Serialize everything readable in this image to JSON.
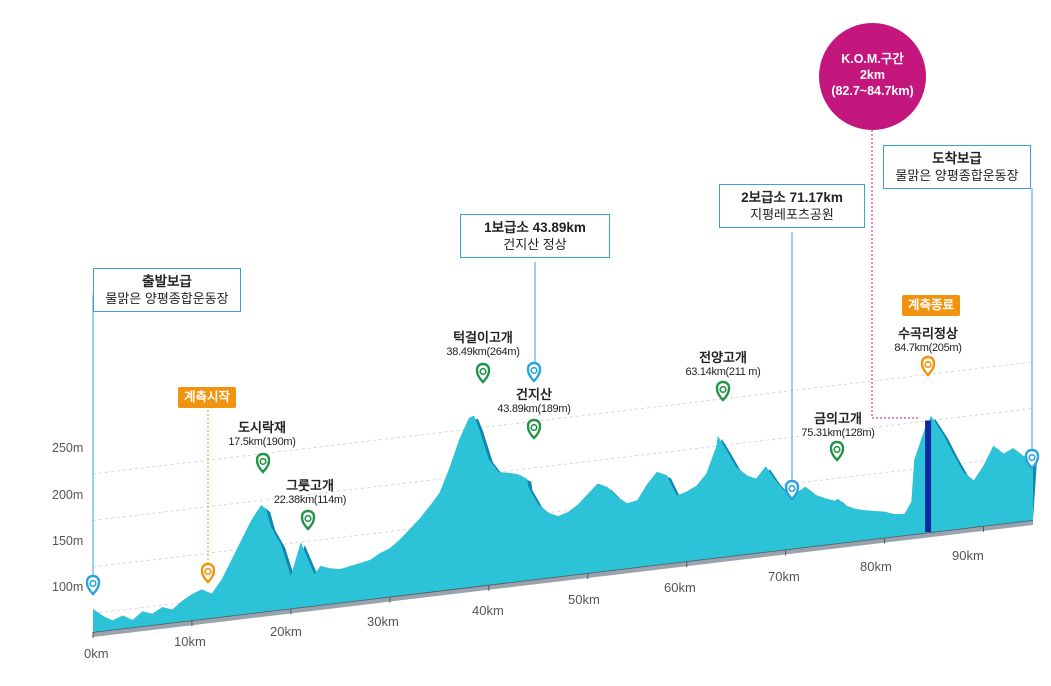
{
  "chart_data": {
    "type": "area",
    "xlabel": "",
    "ylabel": "",
    "x_unit": "km",
    "y_unit": "m",
    "xlim": [
      0,
      95
    ],
    "ylim": [
      80,
      300
    ],
    "x_ticks": [
      "0km",
      "10km",
      "20km",
      "30km",
      "40km",
      "50km",
      "60km",
      "70km",
      "80km",
      "90km"
    ],
    "y_ticks": [
      "100m",
      "150m",
      "200m",
      "250m"
    ],
    "elevation_profile": {
      "x": [
        0,
        1,
        2,
        3,
        4,
        5,
        6,
        7,
        8,
        9,
        10,
        11,
        12,
        13,
        14,
        15,
        16,
        17,
        17.5,
        18,
        19,
        20,
        21,
        22.38,
        23,
        24,
        25,
        26,
        27,
        28,
        29,
        30,
        31,
        32,
        33,
        34,
        35,
        36,
        37,
        38,
        38.49,
        39,
        40,
        41,
        42,
        43,
        43.89,
        44,
        45,
        46,
        47,
        48,
        49,
        50,
        51,
        52,
        53,
        54,
        55,
        56,
        57,
        58,
        59,
        60,
        61,
        62,
        63,
        63.14,
        64,
        65,
        66,
        67,
        68,
        69,
        70,
        71,
        71.17,
        72,
        73,
        74,
        75,
        75.31,
        76,
        77,
        78,
        79,
        80,
        81,
        82,
        82.7,
        83,
        84,
        84.7,
        85,
        86,
        87,
        88,
        89,
        90,
        91,
        92,
        93,
        94,
        95
      ],
      "elevation": [
        105,
        96,
        90,
        94,
        88,
        96,
        92,
        98,
        94,
        102,
        108,
        112,
        106,
        120,
        140,
        160,
        180,
        195,
        190,
        170,
        150,
        115,
        150,
        114,
        122,
        118,
        116,
        118,
        120,
        122,
        128,
        132,
        140,
        150,
        160,
        172,
        185,
        210,
        240,
        262,
        264,
        250,
        215,
        200,
        198,
        195,
        189,
        180,
        160,
        150,
        145,
        148,
        155,
        165,
        175,
        170,
        158,
        150,
        152,
        168,
        180,
        175,
        152,
        155,
        160,
        172,
        200,
        211,
        195,
        175,
        165,
        160,
        172,
        155,
        142,
        138,
        140,
        145,
        135,
        130,
        126,
        128,
        120,
        115,
        112,
        110,
        108,
        104,
        103,
        115,
        160,
        190,
        205,
        200,
        182,
        160,
        140,
        130,
        145,
        165,
        155,
        160,
        150,
        148,
        142
      ]
    },
    "kom_segment": [
      82.7,
      84.7
    ],
    "points": [
      {
        "name": "출발보급",
        "km": 0,
        "color": "#29a3dc"
      },
      {
        "name": "계측시작",
        "km": 11,
        "color": "#f0930f"
      },
      {
        "name": "도시락재",
        "km": 17.5,
        "elev": 190,
        "color": "#239447"
      },
      {
        "name": "그룻고개",
        "km": 22.38,
        "elev": 114,
        "color": "#239447"
      },
      {
        "name": "턱걸이고개",
        "km": 38.49,
        "elev": 264,
        "color": "#239447"
      },
      {
        "name": "건지산",
        "km": 43.89,
        "elev": 189,
        "color": "#239447"
      },
      {
        "name": "1보급소",
        "km": 43.89,
        "color": "#29a3dc"
      },
      {
        "name": "전양고개",
        "km": 63.14,
        "elev": 211,
        "color": "#239447"
      },
      {
        "name": "2보급소",
        "km": 71.17,
        "color": "#29a3dc"
      },
      {
        "name": "금의고개",
        "km": 75.31,
        "elev": 128,
        "color": "#239447"
      },
      {
        "name": "수곡리정상",
        "km": 84.7,
        "elev": 205,
        "color": "#f0930f"
      },
      {
        "name": "도착보급",
        "km": 95,
        "color": "#29a3dc"
      }
    ]
  },
  "labels": {
    "start_box": {
      "line1": "출발보급",
      "line2": "물맑은 양평종합운동장"
    },
    "aid1_box": {
      "line1": "1보급소  43.89km",
      "line2": "건지산 정상"
    },
    "aid2_box": {
      "line1": "2보급소  71.17km",
      "line2": "지평레포츠공원"
    },
    "finish_box": {
      "line1": "도착보급",
      "line2": "물맑은 양평종합운동장"
    },
    "kom": {
      "line1": "K.O.M.구간",
      "line2": "2km",
      "line3": "(82.7~84.7km)"
    },
    "timing_start": "계측시작",
    "timing_end": "계측종료",
    "peaks": {
      "dosirak": {
        "name": "도시락재",
        "sub": "17.5km(190m)"
      },
      "grut": {
        "name": "그룻고개",
        "sub": "22.38km(114m)"
      },
      "teok": {
        "name": "턱걸이고개",
        "sub": "38.49km(264m)"
      },
      "geonji": {
        "name": "건지산",
        "sub": "43.89km(189m)"
      },
      "jeonyang": {
        "name": "전양고개",
        "sub": "63.14km(211 m)"
      },
      "geumui": {
        "name": "금의고개",
        "sub": "75.31km(128m)"
      },
      "sugok": {
        "name": "수곡리정상",
        "sub": "84.7km(205m)"
      }
    }
  },
  "colors": {
    "fill": "#2cc2d8",
    "fill_dark": "#0f86ad",
    "blue_marker": "#29a3dc",
    "green_marker": "#239447",
    "orange": "#f0930f",
    "kom": "#c4177e",
    "kom_bar": "#0b2aa0"
  }
}
